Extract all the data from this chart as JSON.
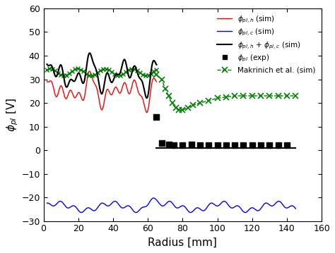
{
  "title": "",
  "xlabel": "Radius [mm]",
  "ylabel": "$\\phi_{pl}$ [V]",
  "xlim": [
    0,
    160
  ],
  "ylim": [
    -30,
    60
  ],
  "yticks": [
    -30,
    -20,
    -10,
    0,
    10,
    20,
    30,
    40,
    50,
    60
  ],
  "xticks": [
    0,
    20,
    40,
    60,
    80,
    100,
    120,
    140,
    160
  ],
  "bg_color": "#ffffff",
  "legend_entries": [
    "$\\phi_{pl,h}$ (sim)",
    "$\\phi_{pl,c}$ (sim)",
    "$\\phi_{pl,h}$ + $\\phi_{pl,c}$ (sim)",
    "$\\phi_{pl}$ (exp)",
    "Makrinich et al. (sim)"
  ]
}
